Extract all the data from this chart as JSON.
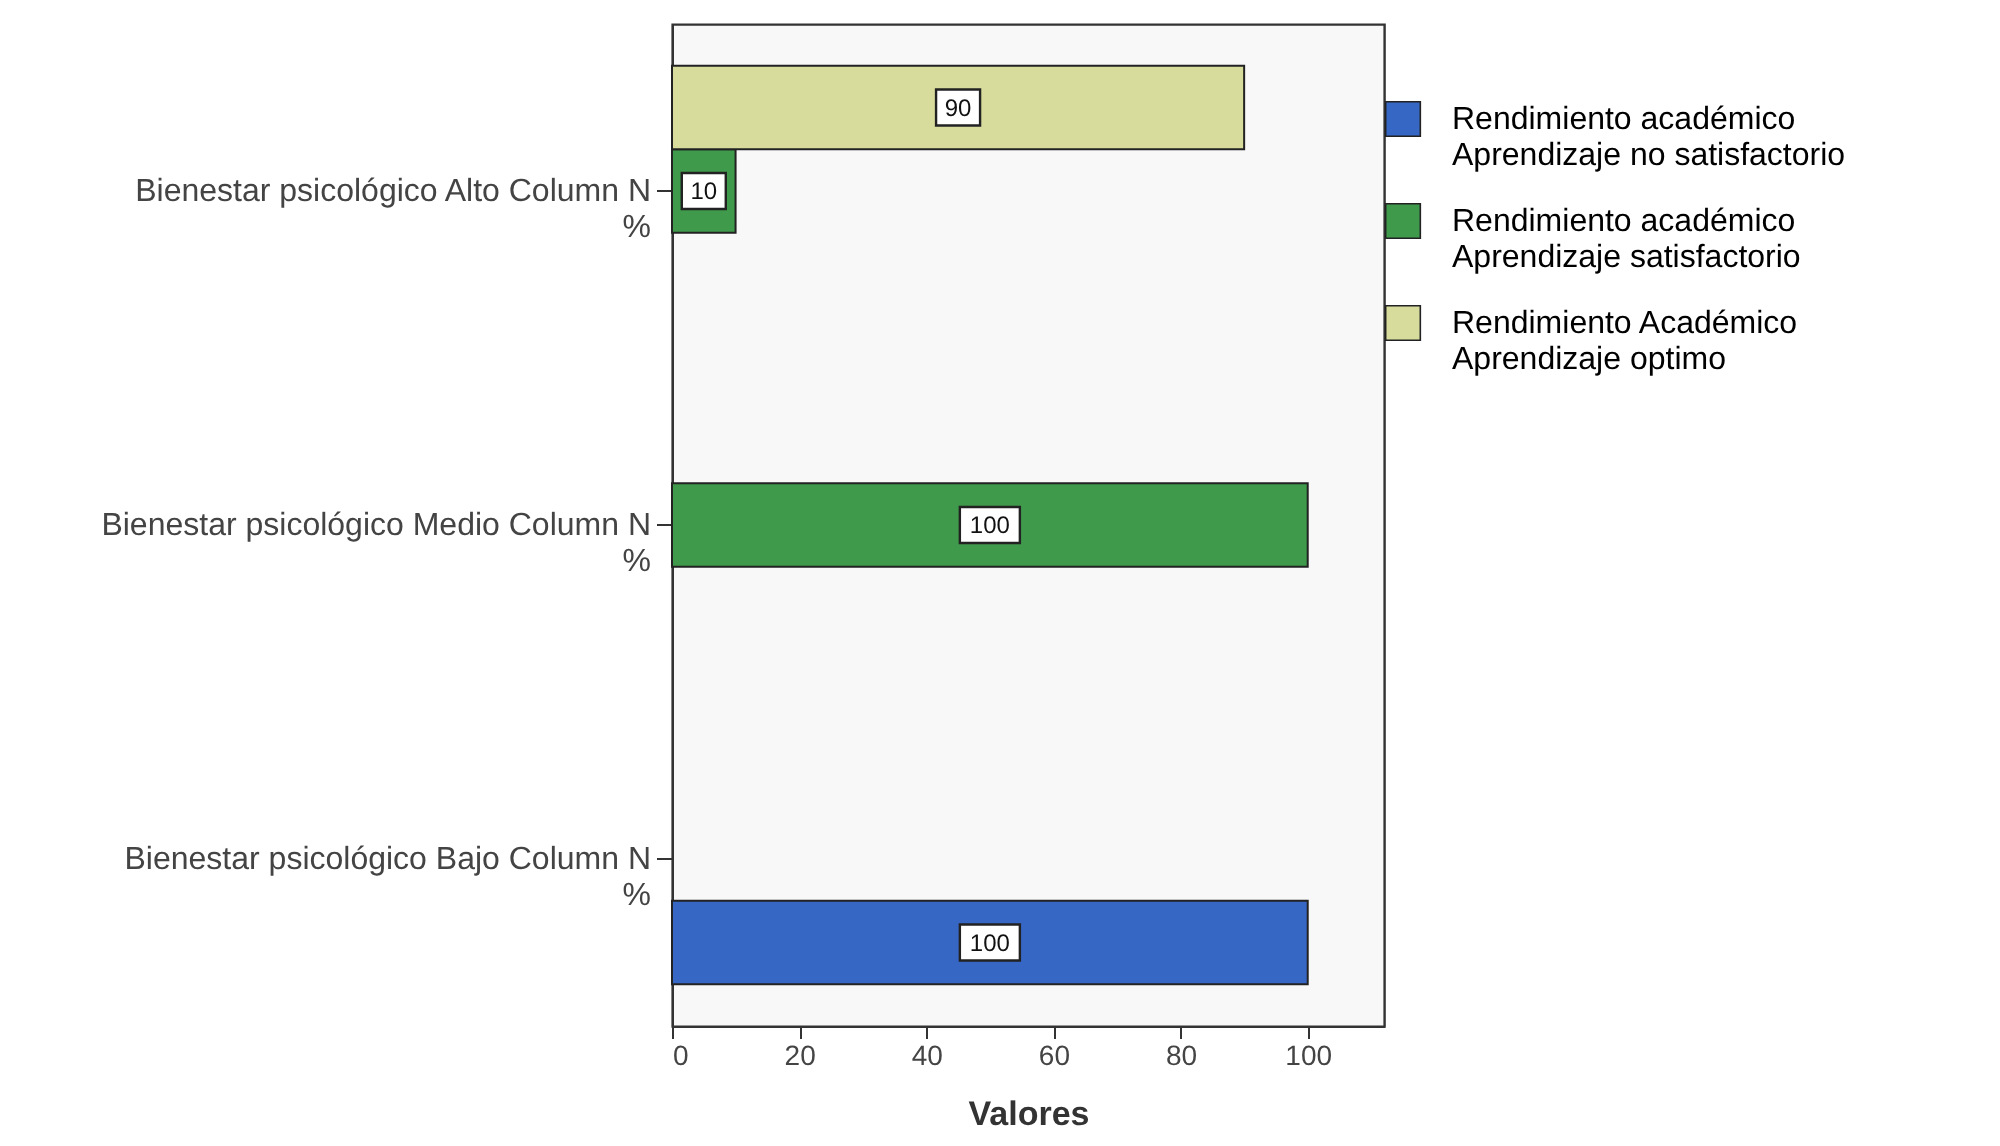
{
  "chart_data": {
    "type": "bar",
    "orientation": "horizontal",
    "categories": [
      "Bienestar psicológico Alto Column N\n%",
      "Bienestar psicológico Medio Column N\n%",
      "Bienestar psicológico Bajo Column N\n%"
    ],
    "series": [
      {
        "name": "Rendimiento académico\nAprendizaje no satisfactorio",
        "color": "#3767c4",
        "values": [
          null,
          null,
          100
        ]
      },
      {
        "name": "Rendimiento académico\nAprendizaje satisfactorio",
        "color": "#3f9a4c",
        "values": [
          10,
          100,
          null
        ]
      },
      {
        "name": "Rendimiento Académico\nAprendizaje optimo",
        "color": "#d7dc9c",
        "values": [
          90,
          null,
          null
        ]
      }
    ],
    "xlabel": "Valores",
    "xlim": [
      0,
      112
    ],
    "xticks": [
      0,
      20,
      40,
      60,
      80,
      100
    ],
    "grid": false,
    "legend": "top right",
    "data_labels": true
  }
}
